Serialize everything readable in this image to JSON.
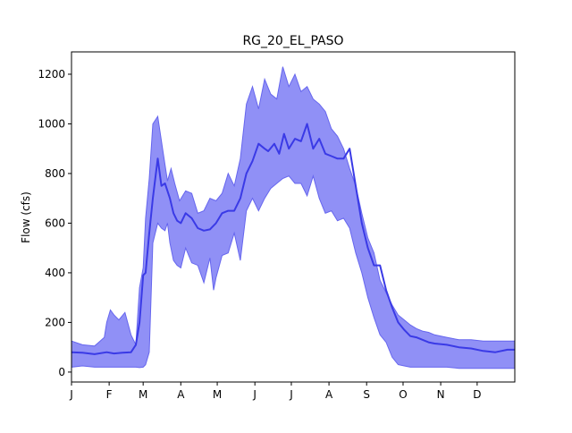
{
  "chart_data": {
    "type": "area",
    "title": "RG_20_EL_PASO",
    "xlabel": "",
    "ylabel": "Flow (cfs)",
    "xlim": [
      1,
      366
    ],
    "ylim": [
      -40,
      1290
    ],
    "grid": false,
    "legend": "none",
    "x_ticks": [
      {
        "day": 1,
        "label": "J"
      },
      {
        "day": 32,
        "label": "F"
      },
      {
        "day": 60,
        "label": "M"
      },
      {
        "day": 91,
        "label": "A"
      },
      {
        "day": 121,
        "label": "M"
      },
      {
        "day": 152,
        "label": "J"
      },
      {
        "day": 182,
        "label": "J"
      },
      {
        "day": 213,
        "label": "A"
      },
      {
        "day": 244,
        "label": "S"
      },
      {
        "day": 274,
        "label": "O"
      },
      {
        "day": 305,
        "label": "N"
      },
      {
        "day": 335,
        "label": "D"
      }
    ],
    "y_ticks": [
      0,
      200,
      400,
      600,
      800,
      1000,
      1200
    ],
    "band_color": "#8a8af5",
    "band_edge_color": "#6666ee",
    "line_color": "#3a3ae6",
    "series": [
      {
        "role": "median",
        "x": [
          1,
          10,
          20,
          30,
          36,
          43,
          50,
          54,
          57,
          60,
          62,
          65,
          68,
          72,
          75,
          78,
          82,
          85,
          88,
          91,
          95,
          100,
          105,
          110,
          115,
          120,
          125,
          130,
          135,
          140,
          145,
          150,
          155,
          160,
          163,
          168,
          172,
          176,
          180,
          185,
          190,
          195,
          200,
          205,
          210,
          215,
          220,
          225,
          230,
          235,
          240,
          245,
          250,
          255,
          260,
          265,
          270,
          275,
          280,
          285,
          290,
          295,
          300,
          310,
          320,
          330,
          340,
          350,
          360,
          366
        ],
        "values": [
          80,
          78,
          72,
          80,
          75,
          78,
          80,
          110,
          200,
          390,
          400,
          560,
          700,
          860,
          750,
          760,
          700,
          640,
          610,
          600,
          640,
          620,
          580,
          570,
          575,
          600,
          640,
          650,
          650,
          700,
          800,
          850,
          920,
          900,
          890,
          920,
          880,
          960,
          900,
          940,
          930,
          1000,
          900,
          940,
          880,
          870,
          860,
          860,
          900,
          750,
          600,
          500,
          430,
          430,
          330,
          260,
          200,
          170,
          145,
          140,
          130,
          120,
          115,
          110,
          100,
          95,
          85,
          80,
          90,
          90
        ]
      },
      {
        "role": "upper",
        "x": [
          1,
          10,
          20,
          28,
          30,
          33,
          36,
          40,
          45,
          50,
          54,
          57,
          60,
          62,
          65,
          68,
          72,
          76,
          80,
          83,
          86,
          90,
          95,
          100,
          105,
          110,
          115,
          120,
          125,
          130,
          135,
          140,
          145,
          150,
          155,
          160,
          165,
          170,
          175,
          180,
          185,
          190,
          195,
          200,
          205,
          210,
          215,
          220,
          225,
          230,
          235,
          240,
          245,
          250,
          255,
          260,
          265,
          270,
          275,
          280,
          285,
          290,
          295,
          300,
          310,
          320,
          330,
          340,
          350,
          360,
          366
        ],
        "values": [
          125,
          110,
          105,
          140,
          200,
          250,
          230,
          210,
          240,
          150,
          110,
          340,
          420,
          620,
          780,
          1000,
          1030,
          900,
          770,
          820,
          760,
          690,
          730,
          720,
          640,
          650,
          700,
          690,
          720,
          800,
          750,
          860,
          1080,
          1150,
          1060,
          1180,
          1120,
          1100,
          1230,
          1150,
          1200,
          1130,
          1150,
          1100,
          1080,
          1050,
          980,
          950,
          900,
          820,
          750,
          640,
          540,
          480,
          370,
          320,
          270,
          230,
          210,
          190,
          175,
          165,
          160,
          150,
          140,
          130,
          130,
          125,
          125,
          125,
          125
        ]
      },
      {
        "role": "lower",
        "x": [
          1,
          10,
          20,
          30,
          40,
          50,
          54,
          57,
          60,
          62,
          65,
          68,
          72,
          75,
          78,
          80,
          82,
          85,
          88,
          91,
          95,
          100,
          105,
          110,
          115,
          118,
          120,
          125,
          130,
          135,
          140,
          145,
          150,
          155,
          160,
          165,
          170,
          175,
          180,
          185,
          190,
          195,
          200,
          205,
          210,
          215,
          220,
          225,
          230,
          235,
          240,
          245,
          250,
          255,
          260,
          265,
          270,
          275,
          280,
          285,
          290,
          295,
          300,
          310,
          320,
          330,
          340,
          350,
          360,
          366
        ],
        "values": [
          20,
          25,
          20,
          20,
          20,
          20,
          20,
          18,
          20,
          30,
          80,
          520,
          600,
          580,
          570,
          600,
          520,
          450,
          430,
          420,
          500,
          440,
          430,
          360,
          460,
          330,
          380,
          470,
          480,
          560,
          450,
          650,
          700,
          650,
          700,
          740,
          760,
          780,
          790,
          760,
          760,
          710,
          790,
          700,
          640,
          650,
          610,
          620,
          580,
          480,
          400,
          300,
          220,
          150,
          120,
          60,
          30,
          25,
          20,
          20,
          20,
          20,
          20,
          20,
          15,
          15,
          15,
          15,
          15,
          15
        ]
      }
    ]
  }
}
